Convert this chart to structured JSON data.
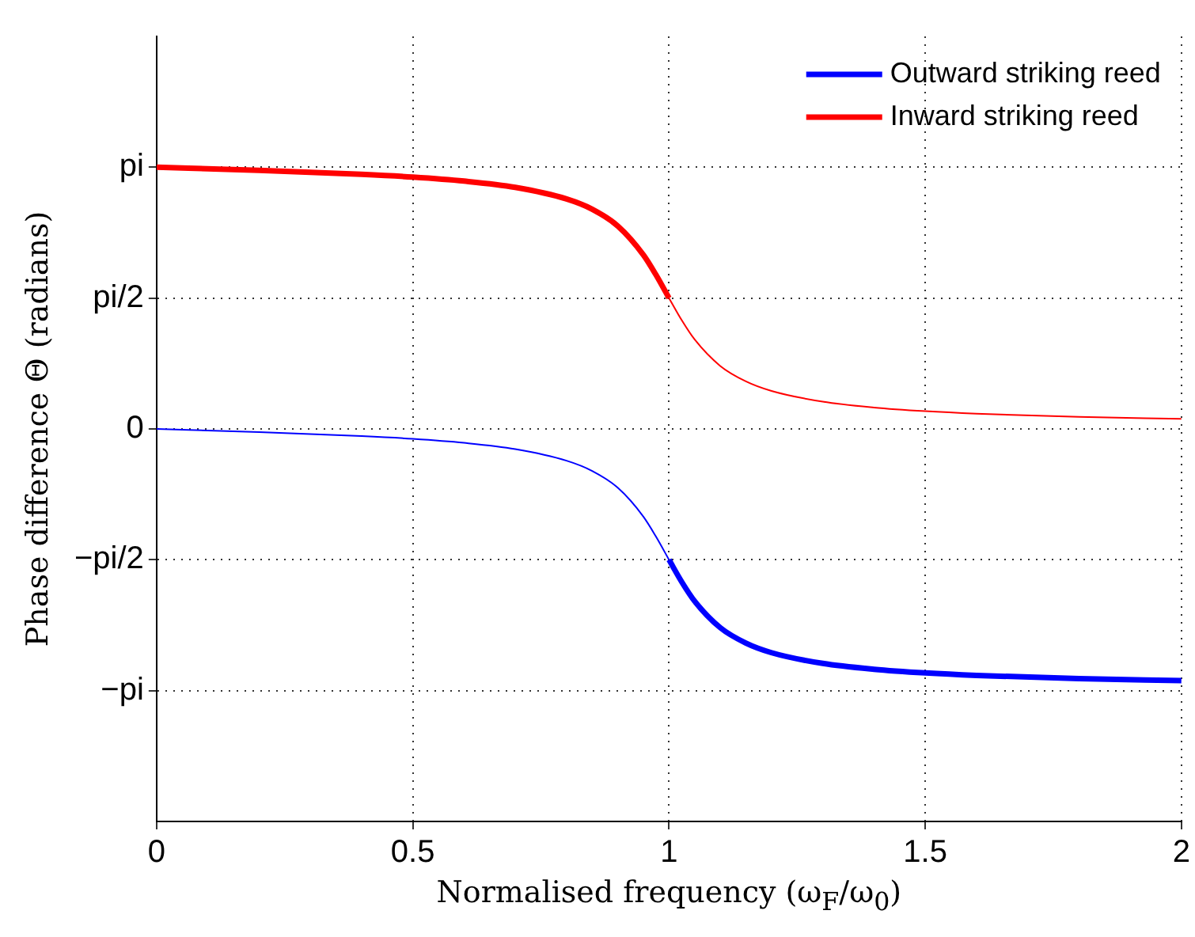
{
  "chart_data": {
    "type": "line",
    "xlabel": "Normalised frequency (ω$_{F}$/ω$_{0}$)",
    "ylabel": "Phase difference Θ (radians)",
    "xlim": [
      0,
      2
    ],
    "xticks": [
      0,
      0.5,
      1,
      1.5,
      2
    ],
    "ylim": [
      -4.712,
      4.712
    ],
    "yticks": [
      {
        "value": -3.1416,
        "label": "−pi"
      },
      {
        "value": -1.5708,
        "label": "−pi/2"
      },
      0,
      {
        "value": 1.5708,
        "label": "pi/2"
      },
      {
        "value": 3.1416,
        "label": "pi"
      }
    ],
    "grid": true,
    "legend": "top right",
    "line_style": "solid",
    "marker": "none",
    "series": [
      {
        "name": "Outward striking reed",
        "color": "#0000ff",
        "x": [
          1.0,
          1.025,
          1.05,
          1.1,
          1.15,
          1.2,
          1.3,
          1.4,
          1.5,
          1.6,
          1.8,
          2.0
        ],
        "values": [
          -1.571,
          -1.838,
          -2.068,
          -2.386,
          -2.571,
          -2.686,
          -2.815,
          -2.885,
          -2.929,
          -2.959,
          -2.998,
          -3.022
        ]
      },
      {
        "name": "Inward striking reed",
        "color": "#ff0000",
        "x": [
          0,
          0.2,
          0.4,
          0.5,
          0.6,
          0.7,
          0.8,
          0.85,
          0.9,
          0.95,
          0.975,
          1.0
        ],
        "values": [
          3.142,
          3.105,
          3.056,
          3.023,
          2.975,
          2.9,
          2.761,
          2.638,
          2.436,
          2.089,
          1.845,
          1.571
        ]
      },
      {
        "color": "#0000ff",
        "x": [
          0,
          0.2,
          0.4,
          0.5,
          0.6,
          0.7,
          0.8,
          0.85,
          0.9,
          0.95,
          0.975,
          1.0
        ],
        "values": [
          0,
          -0.037,
          -0.086,
          -0.119,
          -0.167,
          -0.242,
          -0.381,
          -0.504,
          -0.706,
          -1.053,
          -1.297,
          -1.571
        ]
      },
      {
        "color": "#ff0000",
        "x": [
          1.0,
          1.025,
          1.05,
          1.1,
          1.15,
          1.2,
          1.3,
          1.4,
          1.5,
          1.6,
          1.8,
          2.0
        ],
        "values": [
          1.571,
          1.304,
          1.074,
          0.756,
          0.571,
          0.456,
          0.327,
          0.257,
          0.213,
          0.183,
          0.144,
          0.12
        ]
      }
    ]
  }
}
